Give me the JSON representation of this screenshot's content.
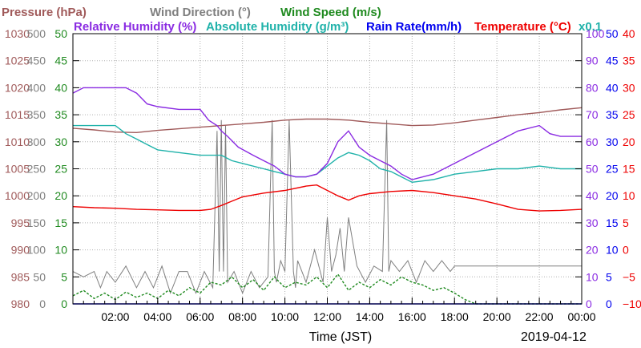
{
  "chart_data": {
    "type": "line",
    "xlabel": "Time (JST)",
    "date_label": "2019-04-12",
    "x_tick_labels": [
      "02:00",
      "04:00",
      "06:00",
      "08:00",
      "10:00",
      "12:00",
      "14:00",
      "16:00",
      "18:00",
      "20:00",
      "22:00",
      "00:00"
    ],
    "x_range_hours": [
      0,
      24
    ],
    "grid": true,
    "legend_rows": [
      [
        {
          "key": "pressure",
          "text": "Pressure (hPa)"
        },
        {
          "key": "wind_dir",
          "text": "Wind Direction (°)"
        },
        {
          "key": "wind_speed",
          "text": "Wind Speed (m/s)"
        }
      ],
      [
        {
          "key": "rel_hum",
          "text": "Relative Humidity (%)"
        },
        {
          "key": "abs_hum",
          "text": "Absolute Humidity (g/m³)"
        },
        {
          "key": "rain",
          "text": "Rain Rate(mm/h)"
        },
        {
          "key": "temp",
          "text": "Temperature  (°C)"
        },
        {
          "key": "abs_hum",
          "text": "x0.1"
        }
      ]
    ],
    "axes": [
      {
        "key": "pressure",
        "side": "left",
        "range": [
          980,
          1030
        ],
        "ticks": [
          "980",
          "985",
          "990",
          "995",
          "1000",
          "1005",
          "1010",
          "1015",
          "1020",
          "1025",
          "1030"
        ]
      },
      {
        "key": "wind_dir",
        "side": "left",
        "range": [
          0,
          500
        ],
        "ticks": [
          "0",
          "50",
          "100",
          "150",
          "200",
          "250",
          "300",
          "350",
          "400",
          "450",
          "500"
        ]
      },
      {
        "key": "wind_speed",
        "side": "left",
        "range": [
          0,
          50
        ],
        "ticks": [
          "0",
          "5",
          "10",
          "15",
          "20",
          "25",
          "30",
          "35",
          "40",
          "45",
          "50"
        ]
      },
      {
        "key": "rel_hum",
        "side": "right",
        "range": [
          0,
          100
        ],
        "ticks": [
          "0",
          "10",
          "20",
          "30",
          "40",
          "50",
          "60",
          "70",
          "80",
          "90",
          "100"
        ]
      },
      {
        "key": "rain",
        "side": "right",
        "range": [
          0,
          50
        ],
        "ticks": [
          "0",
          "5",
          "10",
          "15",
          "20",
          "25",
          "30",
          "35",
          "40",
          "45",
          "50"
        ]
      },
      {
        "key": "temp",
        "side": "right",
        "range": [
          -10,
          40
        ],
        "ticks": [
          "−10",
          "−5",
          "0",
          "5",
          "10",
          "15",
          "20",
          "25",
          "30",
          "35",
          "40"
        ]
      }
    ],
    "colors": {
      "pressure": "#a05a5a",
      "wind_dir": "#7f7f7f",
      "wind_speed": "#1f8a1f",
      "rel_hum": "#8a2be2",
      "abs_hum": "#20b2aa",
      "rain": "#0000ee",
      "temp": "#ee0000",
      "axis": "#000000",
      "grid": "#b0b0b0"
    },
    "series": [
      {
        "key": "pressure",
        "name": "Pressure (hPa)",
        "unit_axis": "pressure",
        "x": [
          0,
          1,
          2,
          3,
          4,
          5,
          6,
          7,
          8,
          9,
          10,
          11,
          12,
          13,
          14,
          15,
          16,
          17,
          18,
          19,
          20,
          21,
          22,
          23,
          24
        ],
        "y": [
          1012.5,
          1012.2,
          1011.8,
          1011.7,
          1012.1,
          1012.4,
          1012.7,
          1013.0,
          1013.3,
          1013.6,
          1014.0,
          1014.2,
          1014.2,
          1014.0,
          1013.6,
          1013.3,
          1013.0,
          1013.1,
          1013.5,
          1014.0,
          1014.5,
          1015.0,
          1015.4,
          1015.9,
          1016.3
        ]
      },
      {
        "key": "rel_hum",
        "name": "Relative Humidity (%)",
        "unit_axis": "rel_hum",
        "x": [
          0,
          0.5,
          2.5,
          3.0,
          3.5,
          4.0,
          5.0,
          6.0,
          6.4,
          6.8,
          7.0,
          7.3,
          7.8,
          8.5,
          9.0,
          9.5,
          10.0,
          10.5,
          11.0,
          11.5,
          12.0,
          12.5,
          13.0,
          13.5,
          14.0,
          14.5,
          15.0,
          15.5,
          16.0,
          17.0,
          18.0,
          19.0,
          20.0,
          21.0,
          22.0,
          22.5,
          23.0,
          24.0
        ],
        "y": [
          78,
          80,
          80,
          78,
          74,
          73,
          72,
          72,
          68,
          66,
          64,
          62,
          58,
          55,
          53,
          51,
          48,
          47,
          47,
          48,
          52,
          60,
          64,
          58,
          55,
          53,
          51,
          48,
          46,
          48,
          52,
          56,
          60,
          64,
          66,
          63,
          62,
          62
        ]
      },
      {
        "key": "abs_hum",
        "name": "Absolute Humidity (g/m³)",
        "unit_axis": "rel_hum",
        "scale": "x0.1",
        "x": [
          0,
          1.0,
          2.0,
          2.5,
          3.0,
          3.5,
          4.0,
          5.0,
          6.0,
          7.0,
          7.5,
          8.0,
          9.0,
          9.5,
          10.0,
          10.5,
          11.0,
          11.5,
          12.0,
          12.5,
          13.0,
          13.5,
          14.0,
          14.5,
          15.0,
          15.5,
          16.0,
          17.0,
          18.0,
          19.0,
          20.0,
          21.0,
          22.0,
          23.0,
          24.0
        ],
        "y": [
          66,
          66,
          66,
          63,
          61,
          59,
          57,
          56,
          55,
          55,
          53,
          52,
          50,
          49,
          48,
          47,
          47,
          48,
          51,
          54,
          56,
          55,
          53,
          50,
          49,
          47,
          45,
          46,
          48,
          49,
          50,
          50,
          51,
          50,
          50
        ]
      },
      {
        "key": "temp",
        "name": "Temperature  (°C)",
        "unit_axis": "temp",
        "x": [
          0,
          1,
          2,
          3,
          4,
          5,
          6,
          6.5,
          7,
          7.5,
          8,
          9,
          10,
          11,
          11.5,
          12,
          12.5,
          13,
          13.5,
          14,
          15,
          16,
          17,
          18,
          19,
          20,
          21,
          22,
          23,
          24
        ],
        "y": [
          8.0,
          7.8,
          7.7,
          7.5,
          7.4,
          7.3,
          7.3,
          7.5,
          8.2,
          9.0,
          9.8,
          10.5,
          11.0,
          11.8,
          12.0,
          11.0,
          10.0,
          9.2,
          10.0,
          10.4,
          10.8,
          11.0,
          10.6,
          10.0,
          9.4,
          8.5,
          7.5,
          7.2,
          7.3,
          7.5
        ]
      },
      {
        "key": "rain",
        "name": "Rain Rate(mm/h)",
        "unit_axis": "rain",
        "x": [
          0,
          24
        ],
        "y": [
          0,
          0
        ]
      },
      {
        "key": "wind_dir",
        "name": "Wind Direction (°)",
        "unit_axis": "wind_dir",
        "x": [
          0,
          0.5,
          1.0,
          1.3,
          1.6,
          2.0,
          2.5,
          3.0,
          3.4,
          3.8,
          4.2,
          4.6,
          5.0,
          5.4,
          5.8,
          6.2,
          6.6,
          6.8,
          6.9,
          7.0,
          7.1,
          7.2,
          7.3,
          7.6,
          8.0,
          8.4,
          8.8,
          9.2,
          9.4,
          9.5,
          9.6,
          9.8,
          10.0,
          10.2,
          10.4,
          10.5,
          10.6,
          10.8,
          11.0,
          11.4,
          11.8,
          12.0,
          12.2,
          12.4,
          12.6,
          12.8,
          13.0,
          13.4,
          13.8,
          14.2,
          14.6,
          14.8,
          14.9,
          15.0,
          15.4,
          15.8,
          16.2,
          16.6,
          17.0,
          17.4,
          17.8,
          18.0,
          18.5,
          24.0
        ],
        "y": [
          60,
          50,
          60,
          30,
          60,
          40,
          70,
          30,
          60,
          30,
          70,
          20,
          60,
          60,
          20,
          60,
          30,
          320,
          60,
          340,
          60,
          330,
          40,
          60,
          20,
          60,
          30,
          50,
          340,
          60,
          40,
          80,
          60,
          340,
          60,
          30,
          80,
          60,
          40,
          100,
          40,
          160,
          60,
          90,
          140,
          60,
          160,
          70,
          40,
          70,
          60,
          340,
          60,
          80,
          60,
          80,
          40,
          80,
          60,
          80,
          60,
          70,
          70,
          70
        ]
      },
      {
        "key": "wind_speed",
        "name": "Wind Speed (m/s)",
        "unit_axis": "wind_speed",
        "x": [
          0,
          0.5,
          1.0,
          1.5,
          2.0,
          2.5,
          3.0,
          3.5,
          4.0,
          4.5,
          5.0,
          5.5,
          6.0,
          6.5,
          7.0,
          7.5,
          8.0,
          8.5,
          9.0,
          9.5,
          10.0,
          10.5,
          11.0,
          11.5,
          12.0,
          12.5,
          13.0,
          13.5,
          14.0,
          14.5,
          15.0,
          15.5,
          16.0,
          16.5,
          17.0,
          17.5,
          18.0,
          18.5,
          19.0,
          24.0
        ],
        "y": [
          1.5,
          2.5,
          1.0,
          2.0,
          0.8,
          2.2,
          1.2,
          2.0,
          1.0,
          2.5,
          1.5,
          3.0,
          2.0,
          4.0,
          3.5,
          5.0,
          3.0,
          4.5,
          2.5,
          5.0,
          3.0,
          4.0,
          3.5,
          5.0,
          3.0,
          5.5,
          2.5,
          4.0,
          3.0,
          4.5,
          3.5,
          5.0,
          4.0,
          3.5,
          2.5,
          3.0,
          2.0,
          0.8,
          0,
          0
        ]
      }
    ]
  }
}
